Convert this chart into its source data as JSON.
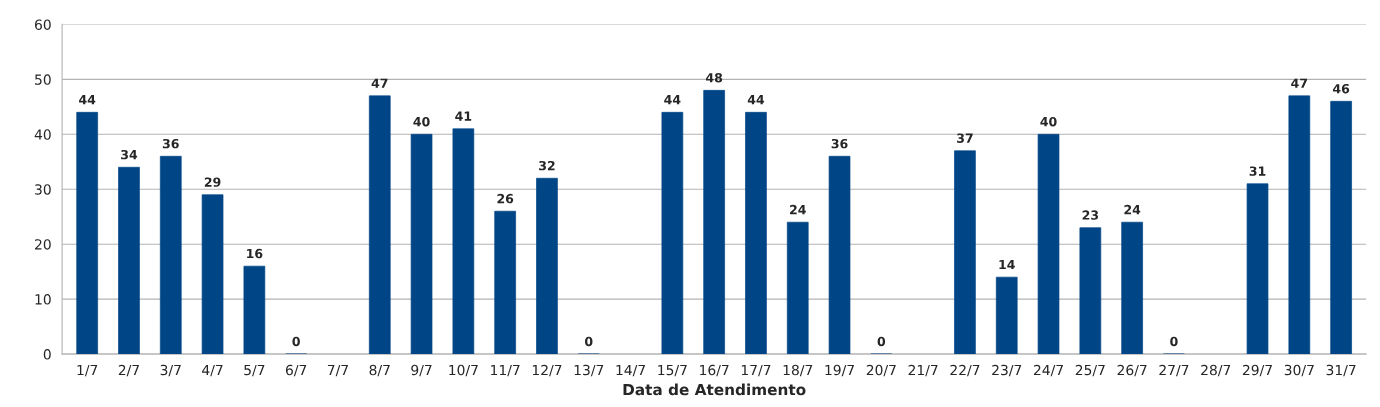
{
  "chart_data": {
    "type": "bar",
    "xlabel": "Data de Atendimento",
    "categories": [
      "1/7",
      "2/7",
      "3/7",
      "4/7",
      "5/7",
      "6/7",
      "7/7",
      "8/7",
      "9/7",
      "10/7",
      "11/7",
      "12/7",
      "13/7",
      "14/7",
      "15/7",
      "16/7",
      "17/7",
      "18/7",
      "19/7",
      "20/7",
      "21/7",
      "22/7",
      "23/7",
      "24/7",
      "25/7",
      "26/7",
      "27/7",
      "28/7",
      "29/7",
      "30/7",
      "31/7"
    ],
    "values": [
      44,
      34,
      36,
      29,
      16,
      0,
      null,
      47,
      40,
      41,
      26,
      32,
      0,
      null,
      44,
      48,
      44,
      24,
      36,
      0,
      null,
      37,
      14,
      40,
      23,
      24,
      0,
      null,
      31,
      47,
      46
    ],
    "color": "#004586",
    "ylim": [
      0,
      60
    ],
    "yticks": [
      0,
      10,
      20,
      30,
      40,
      50,
      60
    ],
    "grid": "y",
    "data_labels": true
  }
}
